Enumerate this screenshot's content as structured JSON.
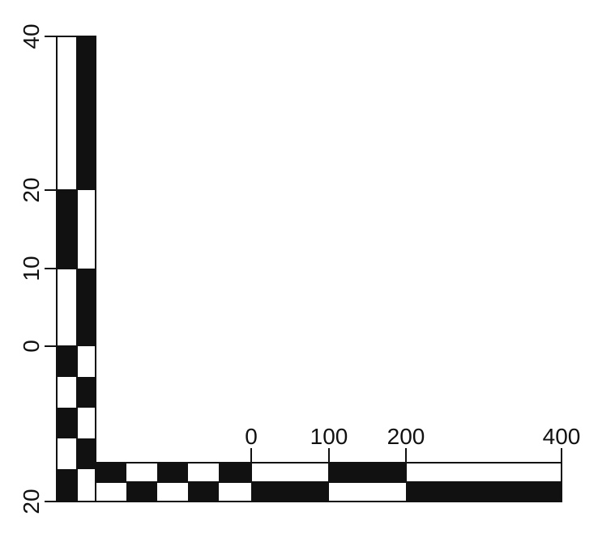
{
  "scale_bar": {
    "vertical": {
      "tick_labels": [
        "40",
        "20",
        "10",
        "0",
        "20"
      ]
    },
    "horizontal": {
      "tick_labels": [
        "0",
        "100",
        "200",
        "400"
      ]
    },
    "colors": {
      "ink": "#111111",
      "paper": "#ffffff"
    }
  }
}
